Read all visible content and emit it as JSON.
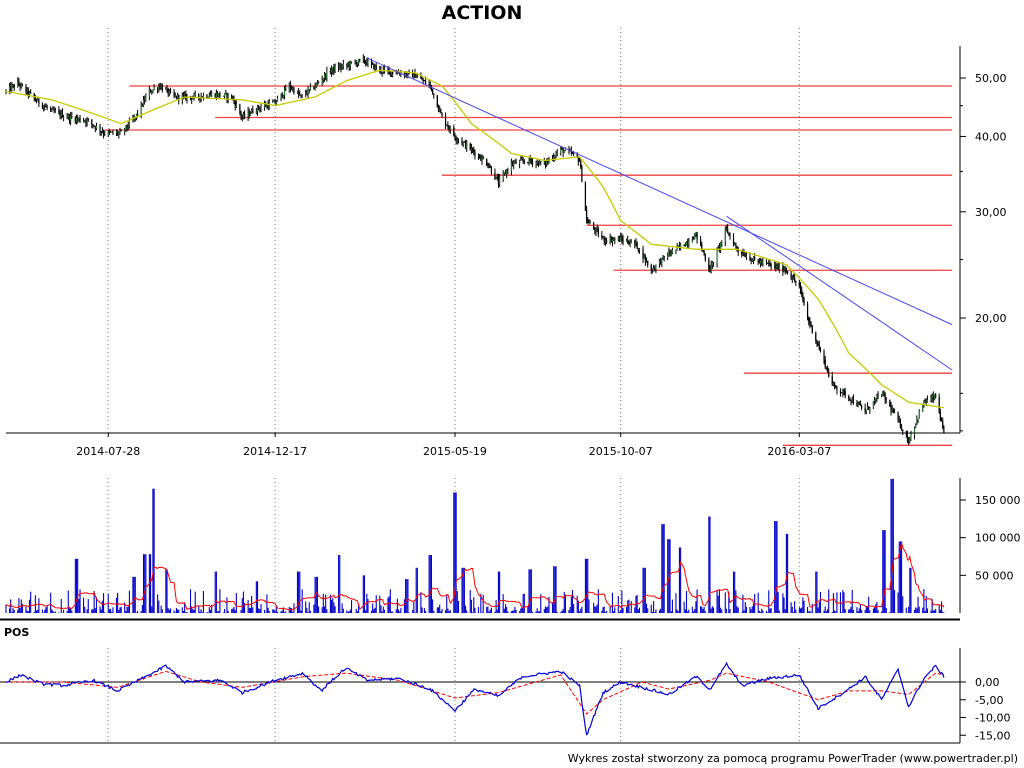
{
  "chart_data": {
    "title": "ACTION",
    "footer": "Wykres został stworzony za pomocą programu PowerTrader (www.powertrader.pl)",
    "colors": {
      "candle": "#000000",
      "candle_body": "#2e7d32",
      "moving_average": "#c9c900",
      "trendline": "#4a4af0",
      "support_resistance": "#f04040",
      "volume": "#0000cc",
      "volume_average": "#ff0000",
      "indicator_main": "#0000dd",
      "indicator_signal": "#ff0000",
      "grid": "#808080"
    },
    "price_panel": {
      "type": "candlestick",
      "y_scale": "log",
      "y_ticks": [
        {
          "value": 50,
          "label": "50,00"
        },
        {
          "value": 40,
          "label": "40,00"
        },
        {
          "value": 30,
          "label": "30,00"
        },
        {
          "value": 20,
          "label": "20,00"
        }
      ],
      "x_ticks": [
        "2014-07-28",
        "2014-12-17",
        "2015-05-19",
        "2015-10-07",
        "2016-03-07"
      ],
      "series": [
        {
          "name": "close",
          "anchors": [
            [
              "2014-05-02",
              47.5
            ],
            [
              "2014-05-12",
              49.0
            ],
            [
              "2014-05-27",
              46.0
            ],
            [
              "2014-06-10",
              44.0
            ],
            [
              "2014-06-25",
              43.0
            ],
            [
              "2014-07-10",
              42.5
            ],
            [
              "2014-07-25",
              40.5
            ],
            [
              "2014-08-08",
              40.5
            ],
            [
              "2014-08-20",
              43.0
            ],
            [
              "2014-09-01",
              47.5
            ],
            [
              "2014-09-10",
              48.5
            ],
            [
              "2014-09-22",
              46.5
            ],
            [
              "2014-10-10",
              46.5
            ],
            [
              "2014-10-27",
              47.0
            ],
            [
              "2014-11-10",
              46.5
            ],
            [
              "2014-11-19",
              43.0
            ],
            [
              "2014-12-01",
              44.5
            ],
            [
              "2014-12-17",
              45.5
            ],
            [
              "2014-12-29",
              48.5
            ],
            [
              "2015-01-08",
              46.5
            ],
            [
              "2015-01-20",
              48.5
            ],
            [
              "2015-02-02",
              51.5
            ],
            [
              "2015-02-16",
              52.5
            ],
            [
              "2015-03-02",
              53.5
            ],
            [
              "2015-03-16",
              51.5
            ],
            [
              "2015-04-01",
              51.0
            ],
            [
              "2015-04-15",
              50.5
            ],
            [
              "2015-04-28",
              48.5
            ],
            [
              "2015-05-08",
              43.0
            ],
            [
              "2015-05-19",
              40.0
            ],
            [
              "2015-06-02",
              38.0
            ],
            [
              "2015-06-16",
              36.0
            ],
            [
              "2015-06-25",
              33.5
            ],
            [
              "2015-07-06",
              36.0
            ],
            [
              "2015-07-20",
              36.5
            ],
            [
              "2015-08-03",
              36.0
            ],
            [
              "2015-08-17",
              38.0
            ],
            [
              "2015-08-26",
              37.5
            ],
            [
              "2015-09-02",
              36.5
            ],
            [
              "2015-09-08",
              29.0
            ],
            [
              "2015-09-22",
              27.0
            ],
            [
              "2015-10-07",
              27.0
            ],
            [
              "2015-10-20",
              26.5
            ],
            [
              "2015-11-02",
              24.0
            ],
            [
              "2015-11-16",
              25.5
            ],
            [
              "2015-11-30",
              26.5
            ],
            [
              "2015-12-10",
              27.5
            ],
            [
              "2015-12-22",
              24.0
            ],
            [
              "2016-01-05",
              28.0
            ],
            [
              "2016-01-14",
              26.0
            ],
            [
              "2016-01-27",
              25.0
            ],
            [
              "2016-02-10",
              24.5
            ],
            [
              "2016-02-25",
              24.0
            ],
            [
              "2016-03-07",
              22.5
            ],
            [
              "2016-03-14",
              20.0
            ],
            [
              "2016-03-23",
              18.0
            ],
            [
              "2016-04-04",
              15.5
            ],
            [
              "2016-04-18",
              14.8
            ],
            [
              "2016-05-02",
              14.0
            ],
            [
              "2016-05-16",
              15.0
            ],
            [
              "2016-05-30",
              13.5
            ],
            [
              "2016-06-08",
              12.5
            ],
            [
              "2016-06-21",
              14.5
            ],
            [
              "2016-07-01",
              14.8
            ],
            [
              "2016-07-08",
              12.8
            ]
          ]
        },
        {
          "name": "moving_average",
          "anchors": [
            [
              "2014-05-02",
              47.5
            ],
            [
              "2014-06-10",
              46.0
            ],
            [
              "2014-07-10",
              44.0
            ],
            [
              "2014-08-08",
              42.0
            ],
            [
              "2014-09-01",
              44.0
            ],
            [
              "2014-10-01",
              46.5
            ],
            [
              "2014-11-19",
              46.0
            ],
            [
              "2014-12-17",
              45.0
            ],
            [
              "2015-01-20",
              46.5
            ],
            [
              "2015-02-16",
              49.5
            ],
            [
              "2015-03-16",
              51.5
            ],
            [
              "2015-04-15",
              51.0
            ],
            [
              "2015-05-08",
              48.5
            ],
            [
              "2015-06-02",
              42.0
            ],
            [
              "2015-07-06",
              37.5
            ],
            [
              "2015-08-03",
              36.5
            ],
            [
              "2015-09-02",
              37.0
            ],
            [
              "2015-09-22",
              33.0
            ],
            [
              "2015-10-07",
              29.0
            ],
            [
              "2015-11-02",
              26.5
            ],
            [
              "2015-12-10",
              26.0
            ],
            [
              "2016-01-14",
              26.0
            ],
            [
              "2016-02-25",
              24.5
            ],
            [
              "2016-03-23",
              21.5
            ],
            [
              "2016-04-18",
              17.5
            ],
            [
              "2016-05-16",
              15.5
            ],
            [
              "2016-06-08",
              14.5
            ],
            [
              "2016-07-08",
              14.2
            ]
          ]
        }
      ],
      "support_resistance": [
        {
          "value": 48.5,
          "from": "2014-08-15",
          "to": "2016-07-15"
        },
        {
          "value": 43.0,
          "from": "2014-10-27",
          "to": "2016-07-15"
        },
        {
          "value": 41.0,
          "from": "2014-07-25",
          "to": "2016-07-15"
        },
        {
          "value": 34.5,
          "from": "2015-05-08",
          "to": "2016-07-15"
        },
        {
          "value": 28.5,
          "from": "2015-09-08",
          "to": "2016-07-15"
        },
        {
          "value": 24.0,
          "from": "2015-10-01",
          "to": "2016-07-15"
        },
        {
          "value": 16.2,
          "from": "2016-01-20",
          "to": "2016-07-15"
        },
        {
          "value": 12.3,
          "from": "2016-02-22",
          "to": "2016-07-15"
        }
      ],
      "trendlines": [
        {
          "from": [
            "2015-03-05",
            54.0
          ],
          "to": [
            "2016-07-15",
            19.5
          ]
        },
        {
          "from": [
            "2016-01-05",
            29.5
          ],
          "to": [
            "2016-07-15",
            16.4
          ]
        }
      ]
    },
    "volume_panel": {
      "type": "bar",
      "y_ticks": [
        {
          "value": 50000,
          "label": "50 000"
        },
        {
          "value": 100000,
          "label": "100 000"
        },
        {
          "value": 150000,
          "label": "150 000"
        }
      ],
      "series_name": "volume",
      "spikes": [
        [
          "2014-07-01",
          72000
        ],
        [
          "2014-08-19",
          48000
        ],
        [
          "2014-08-28",
          78000
        ],
        [
          "2014-09-01",
          78000
        ],
        [
          "2014-09-05",
          165000
        ],
        [
          "2014-09-15",
          58000
        ],
        [
          "2014-10-27",
          55000
        ],
        [
          "2014-12-01",
          42000
        ],
        [
          "2015-01-06",
          55000
        ],
        [
          "2015-01-21",
          48000
        ],
        [
          "2015-02-09",
          77000
        ],
        [
          "2015-03-02",
          50000
        ],
        [
          "2015-04-08",
          45000
        ],
        [
          "2015-04-17",
          60000
        ],
        [
          "2015-04-28",
          77000
        ],
        [
          "2015-05-19",
          160000
        ],
        [
          "2015-05-26",
          60000
        ],
        [
          "2015-06-26",
          55000
        ],
        [
          "2015-07-22",
          58000
        ],
        [
          "2015-08-12",
          62000
        ],
        [
          "2015-09-08",
          72000
        ],
        [
          "2015-10-27",
          60000
        ],
        [
          "2015-11-12",
          118000
        ],
        [
          "2015-11-17",
          98000
        ],
        [
          "2015-11-27",
          87000
        ],
        [
          "2015-12-21",
          128000
        ],
        [
          "2016-01-11",
          55000
        ],
        [
          "2016-02-16",
          122000
        ],
        [
          "2016-02-26",
          105000
        ],
        [
          "2016-03-21",
          55000
        ],
        [
          "2016-05-18",
          110000
        ],
        [
          "2016-05-25",
          178000
        ],
        [
          "2016-06-01",
          95000
        ],
        [
          "2016-06-10",
          60000
        ]
      ]
    },
    "indicator_panel": {
      "type": "line",
      "label": "POS",
      "y_ticks": [
        {
          "value": 0,
          "label": "0,00"
        },
        {
          "value": -5,
          "label": "-5,00"
        },
        {
          "value": -10,
          "label": "-10,00"
        },
        {
          "value": -15,
          "label": "-15,00"
        }
      ],
      "series": [
        {
          "name": "pos",
          "anchors": [
            [
              "2014-05-02",
              0.0
            ],
            [
              "2014-05-15",
              2.0
            ],
            [
              "2014-06-01",
              -0.5
            ],
            [
              "2014-06-20",
              -1.0
            ],
            [
              "2014-07-15",
              0.5
            ],
            [
              "2014-08-05",
              -2.5
            ],
            [
              "2014-09-01",
              2.0
            ],
            [
              "2014-09-15",
              4.5
            ],
            [
              "2014-10-01",
              0.0
            ],
            [
              "2014-11-01",
              0.5
            ],
            [
              "2014-11-19",
              -3.0
            ],
            [
              "2014-12-17",
              0.5
            ],
            [
              "2015-01-10",
              2.5
            ],
            [
              "2015-01-25",
              -2.5
            ],
            [
              "2015-02-15",
              4.0
            ],
            [
              "2015-03-05",
              0.5
            ],
            [
              "2015-04-01",
              1.0
            ],
            [
              "2015-04-28",
              -2.0
            ],
            [
              "2015-05-19",
              -8.0
            ],
            [
              "2015-06-05",
              -2.0
            ],
            [
              "2015-06-25",
              -4.0
            ],
            [
              "2015-07-15",
              1.5
            ],
            [
              "2015-08-17",
              3.0
            ],
            [
              "2015-09-02",
              -1.0
            ],
            [
              "2015-09-08",
              -15.0
            ],
            [
              "2015-09-22",
              -3.0
            ],
            [
              "2015-10-07",
              0.0
            ],
            [
              "2015-10-25",
              -1.5
            ],
            [
              "2015-11-17",
              -3.5
            ],
            [
              "2015-12-10",
              1.5
            ],
            [
              "2015-12-22",
              -2.0
            ],
            [
              "2016-01-05",
              5.0
            ],
            [
              "2016-01-18",
              -1.0
            ],
            [
              "2016-02-10",
              1.0
            ],
            [
              "2016-03-07",
              2.0
            ],
            [
              "2016-03-23",
              -7.5
            ],
            [
              "2016-04-18",
              -2.0
            ],
            [
              "2016-05-02",
              1.5
            ],
            [
              "2016-05-16",
              -5.0
            ],
            [
              "2016-05-30",
              3.5
            ],
            [
              "2016-06-08",
              -7.0
            ],
            [
              "2016-06-21",
              1.0
            ],
            [
              "2016-07-01",
              4.5
            ],
            [
              "2016-07-08",
              1.5
            ]
          ]
        },
        {
          "name": "signal",
          "anchors": [
            [
              "2014-05-02",
              0.0
            ],
            [
              "2014-06-20",
              0.0
            ],
            [
              "2014-08-05",
              -1.5
            ],
            [
              "2014-09-15",
              3.0
            ],
            [
              "2014-10-15",
              0.0
            ],
            [
              "2014-11-19",
              -1.5
            ],
            [
              "2015-01-10",
              1.5
            ],
            [
              "2015-02-15",
              2.5
            ],
            [
              "2015-04-01",
              0.5
            ],
            [
              "2015-05-19",
              -4.5
            ],
            [
              "2015-06-25",
              -3.0
            ],
            [
              "2015-08-17",
              2.0
            ],
            [
              "2015-09-08",
              -9.0
            ],
            [
              "2015-09-22",
              -5.0
            ],
            [
              "2015-10-25",
              0.0
            ],
            [
              "2015-11-17",
              -2.0
            ],
            [
              "2015-12-22",
              0.5
            ],
            [
              "2016-01-05",
              2.5
            ],
            [
              "2016-02-10",
              0.0
            ],
            [
              "2016-03-23",
              -5.0
            ],
            [
              "2016-04-18",
              -2.5
            ],
            [
              "2016-05-16",
              -2.5
            ],
            [
              "2016-06-08",
              -3.5
            ],
            [
              "2016-07-01",
              2.5
            ],
            [
              "2016-07-08",
              2.0
            ]
          ]
        }
      ]
    }
  }
}
